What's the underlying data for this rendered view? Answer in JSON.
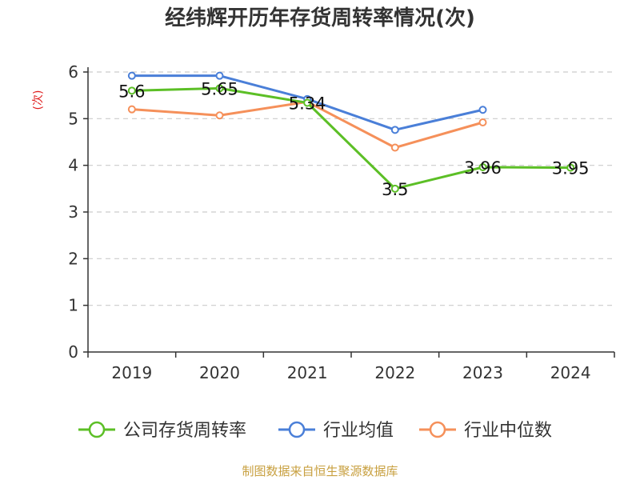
{
  "chart_data": {
    "type": "line",
    "title": "经纬辉开历年存货周转率情况(次)",
    "ylabel": "(次)",
    "ylabel_color": "#e02020",
    "categories": [
      "2019",
      "2020",
      "2021",
      "2022",
      "2023",
      "2024"
    ],
    "ylim": [
      0,
      6
    ],
    "yticks": [
      0,
      1,
      2,
      3,
      4,
      5,
      6
    ],
    "grid": true,
    "legend_position": "bottom",
    "series": [
      {
        "name": "公司存货周转率",
        "color": "#5cbf26",
        "values": [
          5.6,
          5.65,
          5.34,
          3.5,
          3.96,
          3.95
        ],
        "labels": [
          "5.6",
          "5.65",
          "5.34",
          "3.5",
          "3.96",
          "3.95"
        ]
      },
      {
        "name": "行业均值",
        "color": "#4a7fd8",
        "values": [
          5.92,
          5.92,
          5.42,
          4.76,
          5.19,
          null
        ]
      },
      {
        "name": "行业中位数",
        "color": "#f5905a",
        "values": [
          5.2,
          5.07,
          5.36,
          4.38,
          4.92,
          null
        ]
      }
    ]
  },
  "source_note": "制图数据来自恒生聚源数据库",
  "source_note_color": "#c8a040"
}
